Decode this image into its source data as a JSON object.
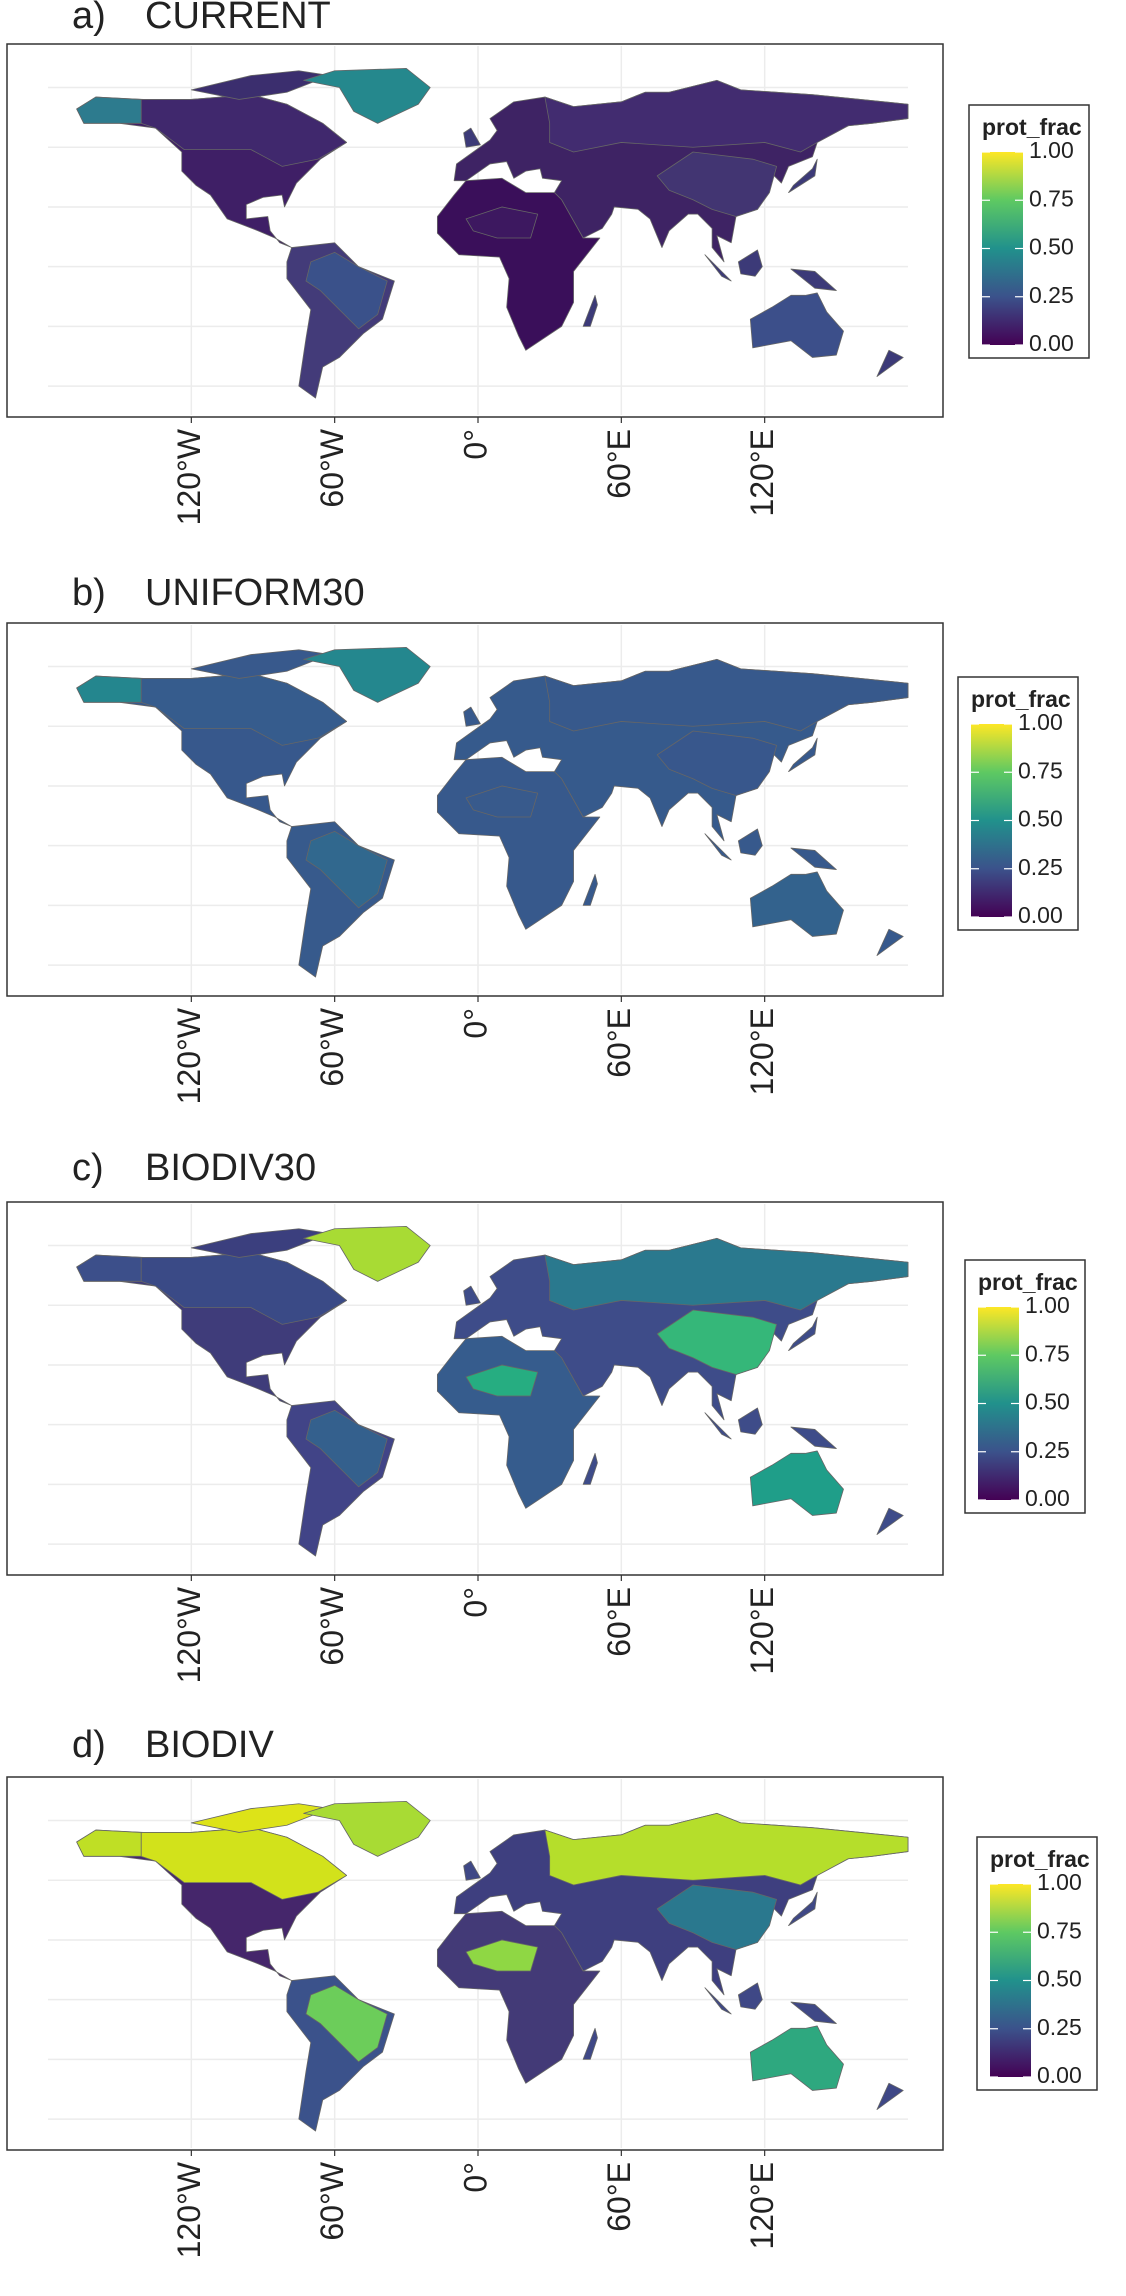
{
  "panels": [
    {
      "label": "a)",
      "title": "CURRENT",
      "xticks": [
        {
          "value": -120,
          "label": "120°W"
        },
        {
          "value": -60,
          "label": "60°W"
        },
        {
          "value": 0,
          "label": "0°"
        },
        {
          "value": 60,
          "label": "60°E"
        },
        {
          "value": 120,
          "label": "120°E"
        }
      ],
      "legend": {
        "title": "prot_frac",
        "colors": [
          "#440154",
          "#3b528b",
          "#21918c",
          "#5ec962",
          "#fde725"
        ],
        "ticks": [
          {
            "value": 0,
            "label": "0.00"
          },
          {
            "value": 0.25,
            "label": "0.25"
          },
          {
            "value": 0.5,
            "label": "0.50"
          },
          {
            "value": 0.75,
            "label": "0.75"
          },
          {
            "value": 1,
            "label": "1.00"
          }
        ]
      }
    },
    {
      "label": "b)",
      "title": "UNIFORM30",
      "xticks": [
        {
          "value": -120,
          "label": "120°W"
        },
        {
          "value": -60,
          "label": "60°W"
        },
        {
          "value": 0,
          "label": "0°"
        },
        {
          "value": 60,
          "label": "60°E"
        },
        {
          "value": 120,
          "label": "120°E"
        }
      ],
      "legend": {
        "title": "prot_frac",
        "colors": [
          "#440154",
          "#3b528b",
          "#21918c",
          "#5ec962",
          "#fde725"
        ],
        "ticks": [
          {
            "value": 0,
            "label": "0.00"
          },
          {
            "value": 0.25,
            "label": "0.25"
          },
          {
            "value": 0.5,
            "label": "0.50"
          },
          {
            "value": 0.75,
            "label": "0.75"
          },
          {
            "value": 1,
            "label": "1.00"
          }
        ]
      }
    },
    {
      "label": "c)",
      "title": "BIODIV30",
      "xticks": [
        {
          "value": -120,
          "label": "120°W"
        },
        {
          "value": -60,
          "label": "60°W"
        },
        {
          "value": 0,
          "label": "0°"
        },
        {
          "value": 60,
          "label": "60°E"
        },
        {
          "value": 120,
          "label": "120°E"
        }
      ],
      "legend": {
        "title": "prot_frac",
        "colors": [
          "#440154",
          "#3b528b",
          "#21918c",
          "#5ec962",
          "#fde725"
        ],
        "ticks": [
          {
            "value": 0,
            "label": "0.00"
          },
          {
            "value": 0.25,
            "label": "0.25"
          },
          {
            "value": 0.5,
            "label": "0.50"
          },
          {
            "value": 0.75,
            "label": "0.75"
          },
          {
            "value": 1,
            "label": "1.00"
          }
        ]
      }
    },
    {
      "label": "d)",
      "title": "BIODIV",
      "xticks": [
        {
          "value": -120,
          "label": "120°W"
        },
        {
          "value": -60,
          "label": "60°W"
        },
        {
          "value": 0,
          "label": "0°"
        },
        {
          "value": 60,
          "label": "60°E"
        },
        {
          "value": 120,
          "label": "120°E"
        }
      ],
      "legend": {
        "title": "prot_frac",
        "colors": [
          "#440154",
          "#3b528b",
          "#21918c",
          "#5ec962",
          "#fde725"
        ],
        "ticks": [
          {
            "value": 0,
            "label": "0.00"
          },
          {
            "value": 0.25,
            "label": "0.25"
          },
          {
            "value": 0.5,
            "label": "0.50"
          },
          {
            "value": 0.75,
            "label": "0.75"
          },
          {
            "value": 1,
            "label": "1.00"
          }
        ]
      }
    }
  ]
}
